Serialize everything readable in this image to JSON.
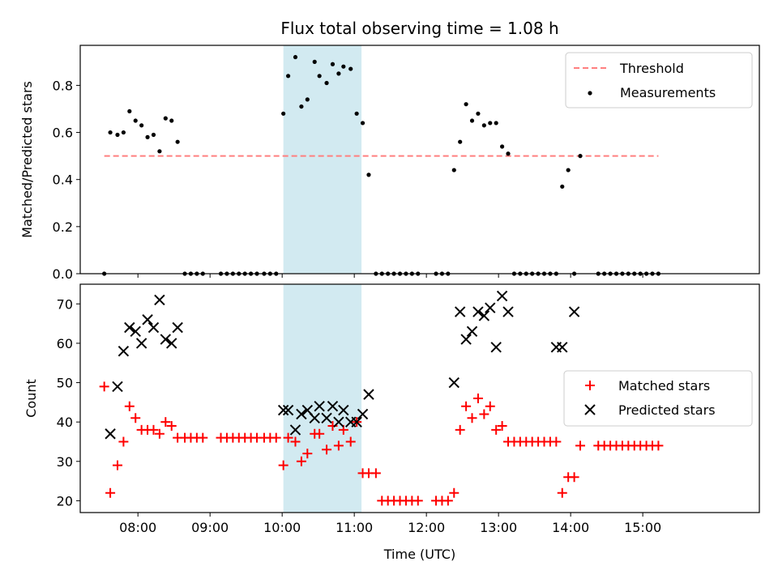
{
  "figure": {
    "title": "Flux total observing time = 1.08 h"
  },
  "chart_data": [
    {
      "type": "scatter",
      "ylabel": "Matched/Predicted stars",
      "xlabel": "",
      "ylim": [
        0,
        0.97
      ],
      "yticks": [
        0.0,
        0.2,
        0.4,
        0.6,
        0.8
      ],
      "ytick_labels": [
        "0.0",
        "0.2",
        "0.4",
        "0.6",
        "0.8"
      ],
      "xlim": [
        "07:12",
        "16:37"
      ],
      "xticks": [
        "08:00",
        "09:00",
        "10:00",
        "11:00",
        "12:00",
        "13:00",
        "14:00",
        "15:00"
      ],
      "highlight_span": [
        "10:01",
        "11:06"
      ],
      "highlight_color": "#add8e6",
      "grid": false,
      "legend_position": "upper right",
      "series": [
        {
          "name": "Threshold",
          "kind": "dashed-line",
          "color": "#ff7f7f",
          "x": [
            "07:32",
            "15:13"
          ],
          "y": [
            0.5,
            0.5
          ]
        },
        {
          "name": "Measurements",
          "kind": "dot",
          "color": "#000000",
          "x": [
            "07:32",
            "07:37",
            "07:43",
            "07:48",
            "07:53",
            "07:58",
            "08:03",
            "08:08",
            "08:13",
            "08:18",
            "08:23",
            "08:28",
            "08:33",
            "08:39",
            "08:44",
            "08:49",
            "08:54",
            "09:09",
            "09:14",
            "09:19",
            "09:24",
            "09:29",
            "09:34",
            "09:39",
            "09:45",
            "09:50",
            "09:55",
            "10:01",
            "10:05",
            "10:11",
            "10:16",
            "10:21",
            "10:27",
            "10:31",
            "10:37",
            "10:42",
            "10:47",
            "10:51",
            "10:57",
            "11:02",
            "11:07",
            "11:12",
            "11:18",
            "11:23",
            "11:28",
            "11:33",
            "11:38",
            "11:43",
            "11:48",
            "11:53",
            "12:08",
            "12:13",
            "12:18",
            "12:23",
            "12:28",
            "12:33",
            "12:38",
            "12:43",
            "12:48",
            "12:53",
            "12:58",
            "13:03",
            "13:08",
            "13:13",
            "13:18",
            "13:23",
            "13:28",
            "13:33",
            "13:38",
            "13:43",
            "13:48",
            "13:53",
            "13:58",
            "14:03",
            "14:08",
            "14:23",
            "14:28",
            "14:33",
            "14:38",
            "14:43",
            "14:48",
            "14:53",
            "14:58",
            "15:03",
            "15:08",
            "15:13"
          ],
          "y": [
            0.0,
            0.6,
            0.59,
            0.6,
            0.69,
            0.65,
            0.63,
            0.58,
            0.59,
            0.52,
            0.66,
            0.65,
            0.56,
            0.0,
            0.0,
            0.0,
            0.0,
            0.0,
            0.0,
            0.0,
            0.0,
            0.0,
            0.0,
            0.0,
            0.0,
            0.0,
            0.0,
            0.68,
            0.84,
            0.92,
            0.71,
            0.74,
            0.9,
            0.84,
            0.81,
            0.89,
            0.85,
            0.88,
            0.87,
            0.68,
            0.64,
            0.42,
            0.0,
            0.0,
            0.0,
            0.0,
            0.0,
            0.0,
            0.0,
            0.0,
            0.0,
            0.0,
            0.0,
            0.44,
            0.56,
            0.72,
            0.65,
            0.68,
            0.63,
            0.64,
            0.64,
            0.54,
            0.51,
            0.0,
            0.0,
            0.0,
            0.0,
            0.0,
            0.0,
            0.0,
            0.0,
            0.37,
            0.44,
            0.0,
            0.5,
            0.0,
            0.0,
            0.0,
            0.0,
            0.0,
            0.0,
            0.0,
            0.0,
            0.0,
            0.0,
            0.0
          ]
        }
      ]
    },
    {
      "type": "scatter",
      "ylabel": "Count",
      "xlabel": "Time (UTC)",
      "ylim": [
        17,
        75
      ],
      "yticks": [
        20,
        30,
        40,
        50,
        60,
        70
      ],
      "ytick_labels": [
        "20",
        "30",
        "40",
        "50",
        "60",
        "70"
      ],
      "xlim": [
        "07:12",
        "16:37"
      ],
      "xticks": [
        "08:00",
        "09:00",
        "10:00",
        "11:00",
        "12:00",
        "13:00",
        "14:00",
        "15:00"
      ],
      "highlight_span": [
        "10:01",
        "11:06"
      ],
      "highlight_color": "#add8e6",
      "grid": false,
      "legend_position": "center right",
      "series": [
        {
          "name": "Matched stars",
          "kind": "plus",
          "color": "#ff0000",
          "x": [
            "07:32",
            "07:37",
            "07:43",
            "07:48",
            "07:53",
            "07:58",
            "08:03",
            "08:08",
            "08:13",
            "08:18",
            "08:23",
            "08:28",
            "08:33",
            "08:39",
            "08:44",
            "08:49",
            "08:54",
            "09:09",
            "09:14",
            "09:19",
            "09:24",
            "09:29",
            "09:34",
            "09:39",
            "09:45",
            "09:50",
            "09:55",
            "10:01",
            "10:05",
            "10:11",
            "10:16",
            "10:21",
            "10:27",
            "10:31",
            "10:37",
            "10:42",
            "10:47",
            "10:51",
            "10:57",
            "11:02",
            "11:07",
            "11:12",
            "11:18",
            "11:23",
            "11:28",
            "11:33",
            "11:38",
            "11:43",
            "11:48",
            "11:53",
            "12:08",
            "12:13",
            "12:18",
            "12:23",
            "12:28",
            "12:33",
            "12:38",
            "12:43",
            "12:48",
            "12:53",
            "12:58",
            "13:03",
            "13:08",
            "13:13",
            "13:18",
            "13:23",
            "13:28",
            "13:33",
            "13:38",
            "13:43",
            "13:48",
            "13:53",
            "13:58",
            "14:03",
            "14:08",
            "14:23",
            "14:28",
            "14:33",
            "14:38",
            "14:43",
            "14:48",
            "14:53",
            "14:58",
            "15:03",
            "15:08",
            "15:13"
          ],
          "y": [
            49,
            22,
            29,
            35,
            44,
            41,
            38,
            38,
            38,
            37,
            40,
            39,
            36,
            36,
            36,
            36,
            36,
            36,
            36,
            36,
            36,
            36,
            36,
            36,
            36,
            36,
            36,
            29,
            36,
            35,
            30,
            32,
            37,
            37,
            33,
            39,
            34,
            38,
            35,
            40,
            27,
            27,
            27,
            20,
            20,
            20,
            20,
            20,
            20,
            20,
            20,
            20,
            20,
            22,
            38,
            44,
            41,
            46,
            42,
            44,
            38,
            39,
            35,
            35,
            35,
            35,
            35,
            35,
            35,
            35,
            35,
            22,
            26,
            26,
            34,
            34,
            34,
            34,
            34,
            34,
            34,
            34,
            34,
            34,
            34,
            34
          ]
        },
        {
          "name": "Predicted stars",
          "kind": "cross",
          "color": "#000000",
          "x": [
            "07:37",
            "07:43",
            "07:48",
            "07:53",
            "07:58",
            "08:03",
            "08:08",
            "08:13",
            "08:18",
            "08:23",
            "08:28",
            "08:33",
            "10:01",
            "10:05",
            "10:11",
            "10:16",
            "10:21",
            "10:27",
            "10:31",
            "10:37",
            "10:42",
            "10:47",
            "10:51",
            "10:57",
            "11:02",
            "11:07",
            "11:12",
            "12:23",
            "12:28",
            "12:33",
            "12:38",
            "12:43",
            "12:48",
            "12:53",
            "12:58",
            "13:03",
            "13:08",
            "13:48",
            "13:53",
            "14:03"
          ],
          "y": [
            37,
            49,
            58,
            64,
            63,
            60,
            66,
            64,
            71,
            61,
            60,
            64,
            43,
            43,
            38,
            42,
            43,
            41,
            44,
            41,
            44,
            40,
            43,
            40,
            40,
            42,
            47,
            50,
            68,
            61,
            63,
            68,
            67,
            69,
            59,
            72,
            68,
            59,
            59,
            68
          ]
        }
      ]
    }
  ]
}
